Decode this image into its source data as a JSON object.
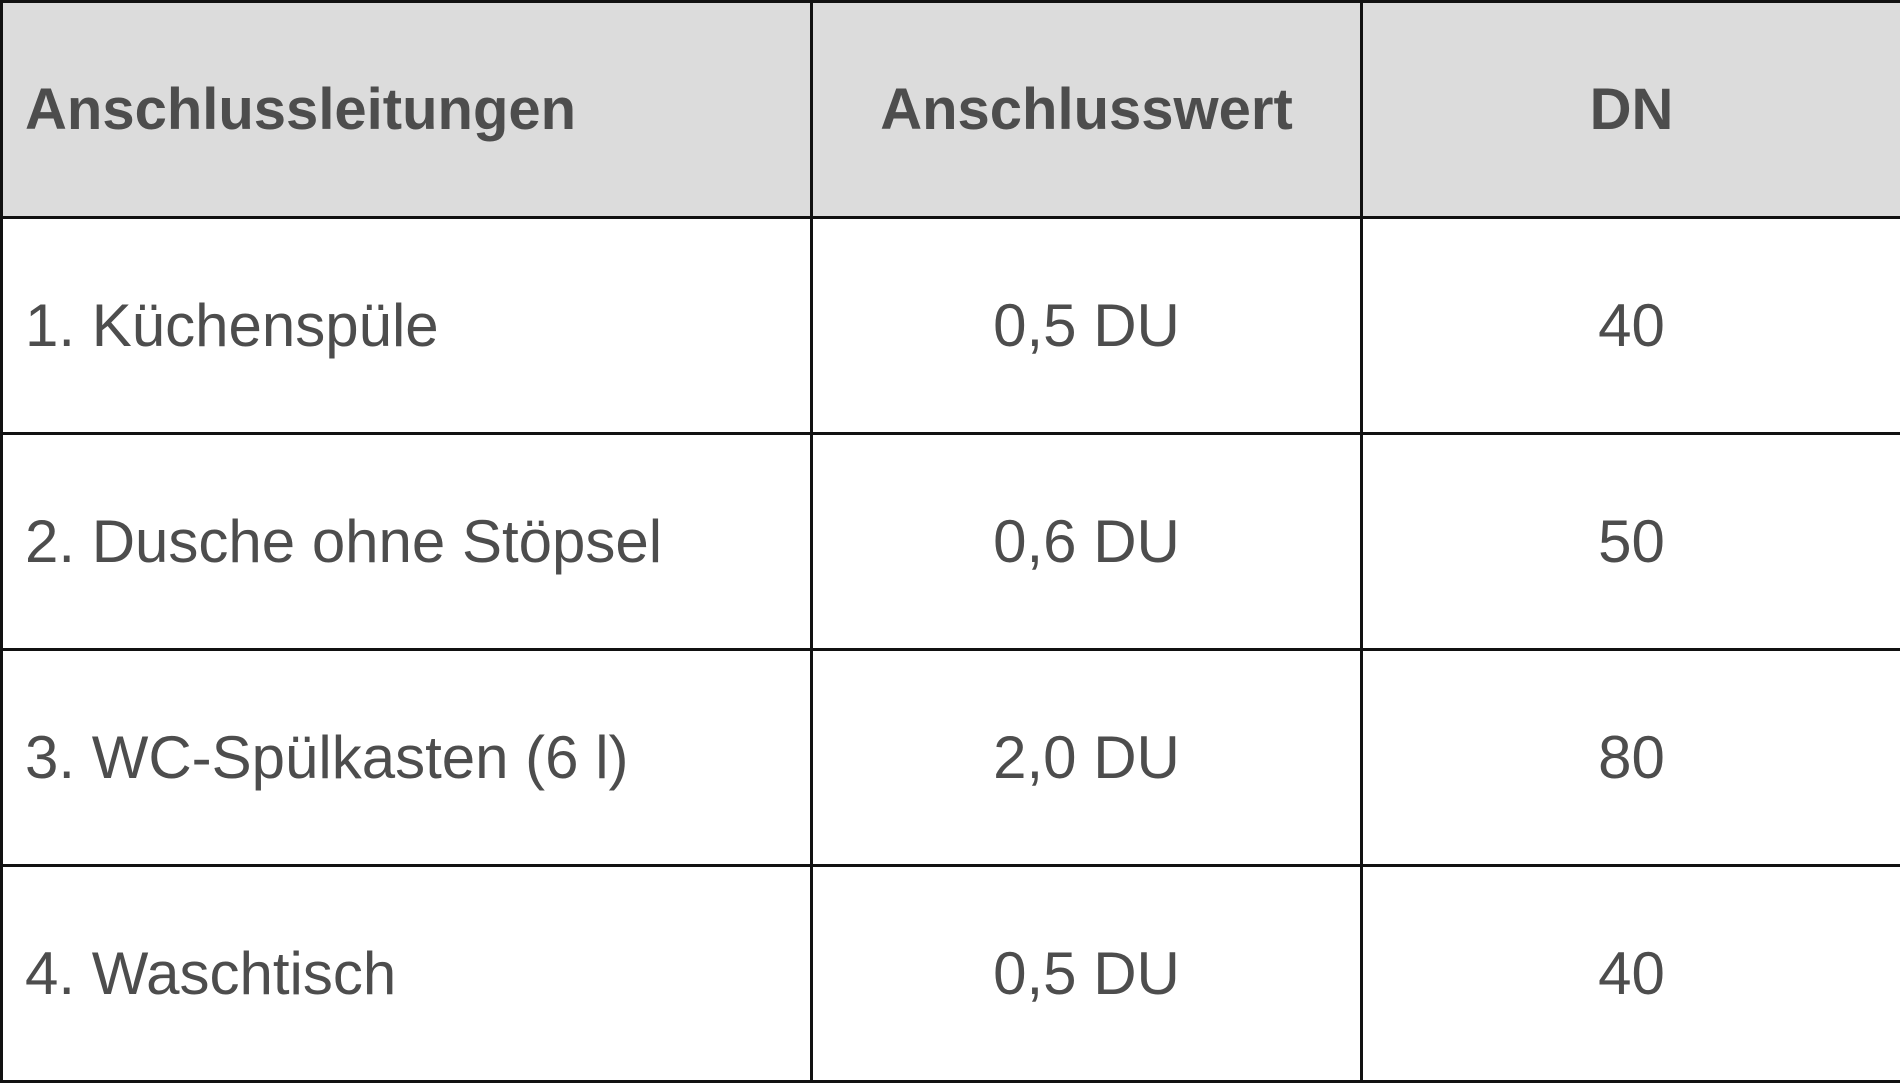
{
  "table": {
    "headers": [
      "Anschlussleitungen",
      "Anschlusswert",
      "DN"
    ],
    "rows": [
      [
        "1. Küchenspüle",
        "0,5 DU",
        "40"
      ],
      [
        "2. Dusche ohne Stöpsel",
        "0,6 DU",
        "50"
      ],
      [
        "3. WC-Spülkasten (6 l)",
        "2,0 DU",
        "80"
      ],
      [
        "4. Waschtisch",
        "0,5 DU",
        "40"
      ]
    ]
  },
  "colors": {
    "header_background": "#dcdcdc",
    "border": "#111111",
    "text": "#4d4d4d"
  }
}
